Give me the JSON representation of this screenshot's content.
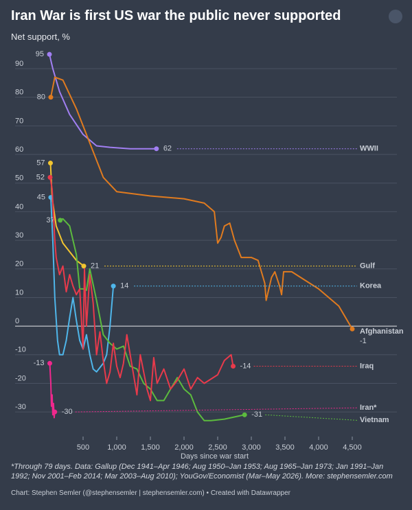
{
  "chart_data": {
    "type": "line",
    "title": "Iran War is first US war the public never supported",
    "subtitle": "Net support, %",
    "x_label": "Days since war start",
    "note": "*Through 79 days. Data: Gallup (Dec 1941–Apr 1946; Aug 1950–Jan 1953; Aug 1965–Jan 1973; Jan 1991–Jan 1992; Nov 2001–Feb 2014; Mar 2003–Aug 2010); YouGov/Economist (Mar–May 2026). More: stephensemler.com",
    "credit": "Chart: Stephen Semler (@stephensemler | stephensemler.com) • Created with Datawrapper",
    "xlim": [
      0,
      4500
    ],
    "ylim": [
      -35,
      96
    ],
    "xticks": [
      500,
      {
        "value": 1000,
        "label": "1,000"
      },
      {
        "value": 1500,
        "label": "1,500"
      },
      {
        "value": 2000,
        "label": "2,000"
      },
      {
        "value": 2500,
        "label": "2,500"
      },
      {
        "value": 3000,
        "label": "3,000"
      },
      {
        "value": 3500,
        "label": "3,500"
      },
      {
        "value": 4000,
        "label": "4,000"
      },
      {
        "value": 4500,
        "label": "4,500"
      }
    ],
    "yticks": [
      90,
      80,
      70,
      60,
      50,
      40,
      30,
      20,
      10,
      0,
      -10,
      -20,
      -30
    ],
    "grid": true,
    "series": [
      {
        "name": "WWII",
        "color": "#a17ff2",
        "x": [
          0,
          50,
          150,
          300,
          500,
          700,
          900,
          1200,
          1590
        ],
        "values": [
          95,
          90,
          82,
          74,
          67,
          63,
          62.5,
          62,
          62
        ]
      },
      {
        "name": "Afghanistan",
        "color": "#e07b1f",
        "x": [
          20,
          80,
          200,
          400,
          600,
          800,
          1000,
          1500,
          2000,
          2300,
          2450,
          2500,
          2550,
          2600,
          2680,
          2750,
          2850,
          3000,
          3100,
          3200,
          3220,
          3300,
          3350,
          3420,
          3450,
          3480,
          3600,
          4000,
          4300,
          4500
        ],
        "values": [
          80,
          87,
          86,
          76,
          64,
          52,
          47,
          45.5,
          44.5,
          43,
          40,
          29,
          31,
          35,
          36,
          30,
          24,
          24,
          23,
          15,
          9,
          17,
          19,
          14,
          11,
          19,
          19,
          13,
          7,
          -1
        ]
      },
      {
        "name": "Gulf",
        "color": "#f2c530",
        "x": [
          15,
          40,
          100,
          200,
          300,
          400,
          510
        ],
        "values": [
          57,
          45,
          35,
          29,
          26,
          23,
          21
        ]
      },
      {
        "name": "Korea",
        "color": "#4fb6ea",
        "x": [
          20,
          50,
          80,
          120,
          150,
          200,
          250,
          300,
          350,
          400,
          450,
          500,
          550,
          600,
          650,
          700,
          800,
          850,
          900,
          950
        ],
        "values": [
          45,
          30,
          10,
          -5,
          -10,
          -10,
          -5,
          3,
          10,
          2,
          -5,
          -8,
          -3,
          -10,
          -15,
          -16,
          -13,
          -10,
          0,
          14
        ]
      },
      {
        "name": "Vietnam",
        "color": "#5cbb3e",
        "x": [
          160,
          200,
          300,
          400,
          450,
          500,
          550,
          600,
          700,
          800,
          900,
          1000,
          1100,
          1200,
          1300,
          1400,
          1500,
          1600,
          1700,
          1800,
          1900,
          2000,
          2100,
          2200,
          2300,
          2400,
          2600,
          2800,
          2900
        ],
        "values": [
          37,
          37.5,
          35,
          25,
          13,
          13,
          12.5,
          20,
          9,
          -3,
          -6,
          -8,
          -7,
          -14,
          -15,
          -20,
          -22,
          -26,
          -26,
          -22,
          -18,
          -22,
          -24,
          -30,
          -33,
          -33,
          -32.5,
          -31.5,
          -31
        ]
      },
      {
        "name": "Iraq",
        "color": "#e83a4b",
        "x": [
          10,
          40,
          80,
          100,
          150,
          200,
          250,
          300,
          350,
          400,
          450,
          500,
          520,
          550,
          600,
          650,
          700,
          750,
          800,
          850,
          900,
          950,
          1000,
          1050,
          1100,
          1150,
          1200,
          1250,
          1300,
          1350,
          1400,
          1450,
          1500,
          1550,
          1600,
          1700,
          1800,
          1900,
          2000,
          2100,
          2200,
          2300,
          2500,
          2600,
          2700,
          2730
        ],
        "values": [
          52,
          48,
          30,
          24,
          18,
          21,
          12,
          18,
          14,
          11,
          13,
          -8,
          20,
          0,
          18,
          8,
          -10,
          -2,
          -12,
          -20,
          -16,
          -6,
          -14,
          -18,
          -13,
          -3,
          -10,
          -17,
          -24,
          -10,
          -16,
          -22,
          -26,
          -11,
          -20,
          -15,
          -22,
          -19,
          -15,
          -22,
          -18,
          -20,
          -17,
          -12,
          -10,
          -14
        ]
      },
      {
        "name": "Iran*",
        "color": "#f0288d",
        "x": [
          5,
          20,
          30,
          40,
          50,
          60,
          70,
          79
        ],
        "values": [
          -13,
          -20,
          -28,
          -24,
          -31,
          -27,
          -32,
          -30
        ]
      }
    ]
  }
}
